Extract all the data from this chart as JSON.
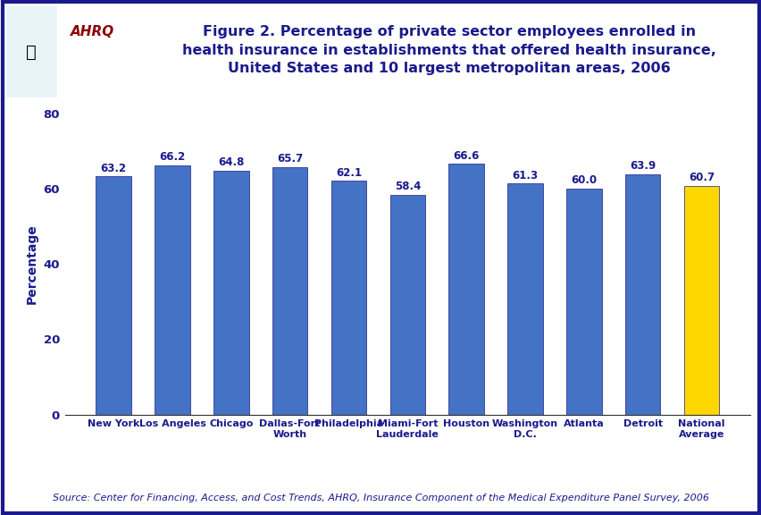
{
  "categories": [
    "New York",
    "Los Angeles",
    "Chicago",
    "Dallas-Fort\nWorth",
    "Philadelphia",
    "Miami-Fort\nLauderdale",
    "Houston",
    "Washington\nD.C.",
    "Atlanta",
    "Detroit",
    "National\nAverage"
  ],
  "values": [
    63.2,
    66.2,
    64.8,
    65.7,
    62.1,
    58.4,
    66.6,
    61.3,
    60.0,
    63.9,
    60.7
  ],
  "bar_colors": [
    "#4472C4",
    "#4472C4",
    "#4472C4",
    "#4472C4",
    "#4472C4",
    "#4472C4",
    "#4472C4",
    "#4472C4",
    "#4472C4",
    "#4472C4",
    "#FFD700"
  ],
  "title_line1": "Figure 2. Percentage of private sector employees enrolled in",
  "title_line2": "health insurance in establishments that offered health insurance,",
  "title_line3": "United States and 10 largest metropolitan areas, 2006",
  "ylabel": "Percentage",
  "ylim": [
    0,
    80
  ],
  "yticks": [
    0,
    20,
    40,
    60,
    80
  ],
  "source_text": "Source: Center for Financing, Access, and Cost Trends, AHRQ, Insurance Component of the Medical Expenditure Panel Survey, 2006",
  "title_color": "#1a1a8c",
  "bar_edge_color": "#1a1a8c",
  "label_color": "#1a1a8c",
  "background_color": "#FFFFFF",
  "outer_border_color": "#1a1a8c",
  "source_color": "#1a1a8c",
  "ylabel_color": "#1a1a8c",
  "tick_label_color": "#1a1a8c",
  "separator_color": "#1a1a8c",
  "logo_bg_color": "#1a9bb5",
  "title_fontsize": 11.5,
  "label_fontsize": 8.5,
  "source_fontsize": 8,
  "ylabel_fontsize": 10,
  "tick_fontsize": 9.5
}
